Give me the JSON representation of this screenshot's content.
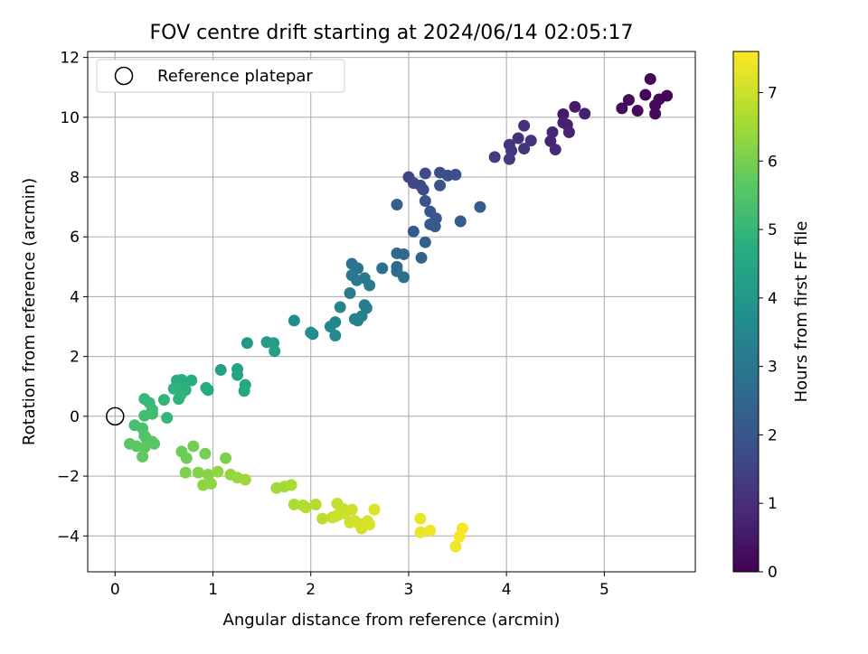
{
  "chart_data": {
    "type": "scatter",
    "title": "FOV centre drift starting at 2024/06/14 02:05:17",
    "xlabel": "Angular distance from reference (arcmin)",
    "ylabel": "Rotation from reference (arcmin)",
    "xlim": [
      -0.28,
      5.93
    ],
    "ylim": [
      -5.2,
      12.2
    ],
    "xticks": [
      0,
      1,
      2,
      3,
      4,
      5
    ],
    "yticks": [
      -4,
      -2,
      0,
      2,
      4,
      6,
      8,
      10,
      12
    ],
    "grid": true,
    "legend": {
      "position": "top-left",
      "entries": [
        "Reference platepar"
      ]
    },
    "reference_point": {
      "label": "Reference platepar",
      "x": 0,
      "y": 0
    },
    "colorbar": {
      "label": "Hours from first FF file",
      "min": 0,
      "max": 7.6,
      "ticks": [
        0,
        1,
        2,
        3,
        4,
        5,
        6,
        7
      ],
      "colormap": "viridis"
    },
    "points": [
      [
        5.47,
        11.28,
        0.05
      ],
      [
        5.42,
        10.75,
        0.1
      ],
      [
        5.56,
        10.6,
        0.12
      ],
      [
        5.64,
        10.72,
        0.08
      ],
      [
        5.52,
        10.4,
        0.15
      ],
      [
        5.34,
        10.22,
        0.2
      ],
      [
        5.52,
        10.12,
        0.18
      ],
      [
        5.18,
        10.3,
        0.25
      ],
      [
        5.25,
        10.58,
        0.22
      ],
      [
        4.58,
        10.1,
        0.55
      ],
      [
        4.7,
        10.35,
        0.6
      ],
      [
        4.62,
        9.75,
        0.65
      ],
      [
        4.58,
        9.82,
        0.7
      ],
      [
        4.8,
        10.12,
        0.72
      ],
      [
        4.64,
        9.5,
        0.75
      ],
      [
        4.45,
        9.2,
        0.8
      ],
      [
        4.47,
        9.5,
        0.85
      ],
      [
        4.5,
        8.92,
        0.9
      ],
      [
        4.18,
        9.72,
        1.0
      ],
      [
        4.12,
        9.3,
        1.05
      ],
      [
        4.25,
        9.22,
        1.1
      ],
      [
        4.18,
        8.95,
        1.15
      ],
      [
        4.03,
        9.08,
        1.2
      ],
      [
        4.05,
        8.88,
        1.25
      ],
      [
        4.03,
        8.6,
        1.3
      ],
      [
        3.88,
        8.67,
        1.35
      ],
      [
        3.0,
        8.0,
        1.6
      ],
      [
        3.05,
        7.8,
        1.65
      ],
      [
        3.12,
        7.72,
        1.7
      ],
      [
        3.15,
        7.58,
        1.72
      ],
      [
        3.17,
        8.12,
        1.75
      ],
      [
        3.32,
        8.15,
        1.8
      ],
      [
        3.4,
        8.05,
        1.82
      ],
      [
        3.48,
        8.08,
        1.85
      ],
      [
        3.32,
        7.72,
        1.9
      ],
      [
        3.17,
        7.2,
        1.95
      ],
      [
        3.22,
        6.85,
        2.0
      ],
      [
        3.28,
        6.62,
        2.05
      ],
      [
        3.22,
        6.42,
        2.1
      ],
      [
        3.27,
        6.35,
        2.12
      ],
      [
        3.05,
        6.18,
        2.15
      ],
      [
        3.53,
        6.52,
        2.2
      ],
      [
        3.73,
        7.0,
        2.25
      ],
      [
        2.88,
        7.08,
        2.3
      ],
      [
        3.17,
        5.82,
        2.35
      ],
      [
        3.13,
        5.3,
        2.4
      ],
      [
        2.88,
        5.45,
        2.55
      ],
      [
        2.95,
        5.42,
        2.6
      ],
      [
        2.88,
        5.0,
        2.65
      ],
      [
        2.88,
        4.85,
        2.7
      ],
      [
        2.95,
        4.65,
        2.75
      ],
      [
        2.73,
        4.95,
        2.8
      ],
      [
        2.42,
        5.1,
        2.85
      ],
      [
        2.48,
        4.95,
        2.9
      ],
      [
        2.42,
        4.72,
        2.95
      ],
      [
        2.47,
        4.55,
        3.0
      ],
      [
        2.55,
        4.62,
        3.02
      ],
      [
        2.6,
        4.38,
        3.05
      ],
      [
        2.4,
        4.12,
        3.1
      ],
      [
        2.55,
        3.72,
        3.15
      ],
      [
        2.57,
        3.62,
        3.2
      ],
      [
        2.52,
        3.35,
        3.25
      ],
      [
        2.45,
        3.25,
        3.3
      ],
      [
        2.48,
        3.2,
        3.35
      ],
      [
        2.3,
        3.65,
        3.4
      ],
      [
        2.2,
        3.0,
        3.45
      ],
      [
        2.25,
        3.15,
        3.5
      ],
      [
        2.25,
        2.7,
        3.55
      ],
      [
        2.02,
        2.75,
        3.6
      ],
      [
        2.0,
        2.8,
        3.65
      ],
      [
        1.83,
        3.2,
        3.7
      ],
      [
        1.35,
        2.45,
        4.1
      ],
      [
        1.55,
        2.48,
        4.15
      ],
      [
        1.62,
        2.45,
        4.2
      ],
      [
        1.63,
        2.18,
        4.25
      ],
      [
        1.08,
        1.55,
        4.3
      ],
      [
        1.25,
        1.58,
        4.35
      ],
      [
        1.25,
        1.38,
        4.4
      ],
      [
        1.33,
        1.05,
        4.45
      ],
      [
        1.32,
        0.85,
        4.5
      ],
      [
        0.93,
        0.95,
        4.6
      ],
      [
        0.95,
        0.88,
        4.65
      ],
      [
        0.78,
        1.2,
        4.7
      ],
      [
        0.68,
        1.22,
        4.72
      ],
      [
        0.63,
        1.2,
        4.75
      ],
      [
        0.7,
        0.95,
        4.8
      ],
      [
        0.72,
        0.88,
        4.82
      ],
      [
        0.6,
        0.92,
        4.85
      ],
      [
        0.67,
        0.72,
        4.88
      ],
      [
        0.65,
        0.58,
        4.9
      ],
      [
        0.5,
        0.55,
        4.95
      ],
      [
        0.53,
        -0.05,
        5.0
      ],
      [
        0.3,
        0.58,
        5.05
      ],
      [
        0.35,
        0.45,
        5.1
      ],
      [
        0.38,
        0.22,
        5.15
      ],
      [
        0.38,
        0.08,
        5.2
      ],
      [
        0.3,
        0.02,
        5.25
      ],
      [
        0.2,
        -0.3,
        5.3
      ],
      [
        0.28,
        -0.4,
        5.4
      ],
      [
        0.3,
        -0.65,
        5.45
      ],
      [
        0.32,
        -0.75,
        5.5
      ],
      [
        0.38,
        -0.85,
        5.55
      ],
      [
        0.4,
        -0.92,
        5.6
      ],
      [
        0.15,
        -0.92,
        5.62
      ],
      [
        0.22,
        -1.0,
        5.65
      ],
      [
        0.3,
        -1.05,
        5.68
      ],
      [
        0.28,
        -1.35,
        5.7
      ],
      [
        0.68,
        -1.18,
        5.85
      ],
      [
        0.73,
        -1.4,
        5.9
      ],
      [
        0.8,
        -1.0,
        5.95
      ],
      [
        0.92,
        -1.25,
        6.0
      ],
      [
        1.13,
        -1.4,
        6.05
      ],
      [
        0.72,
        -1.88,
        6.1
      ],
      [
        0.85,
        -1.88,
        6.15
      ],
      [
        0.95,
        -1.95,
        6.2
      ],
      [
        0.98,
        -2.25,
        6.25
      ],
      [
        0.9,
        -2.3,
        6.28
      ],
      [
        1.05,
        -1.85,
        6.3
      ],
      [
        1.18,
        -1.95,
        6.35
      ],
      [
        1.25,
        -2.05,
        6.4
      ],
      [
        1.33,
        -2.12,
        6.45
      ],
      [
        1.65,
        -2.4,
        6.5
      ],
      [
        1.73,
        -2.35,
        6.55
      ],
      [
        1.8,
        -2.3,
        6.6
      ],
      [
        1.83,
        -2.95,
        6.65
      ],
      [
        1.92,
        -2.98,
        6.7
      ],
      [
        1.95,
        -3.05,
        6.72
      ],
      [
        2.05,
        -2.95,
        6.75
      ],
      [
        2.12,
        -3.42,
        6.8
      ],
      [
        2.22,
        -3.38,
        6.85
      ],
      [
        2.27,
        -2.92,
        6.9
      ],
      [
        2.28,
        -3.3,
        6.92
      ],
      [
        2.33,
        -3.1,
        6.95
      ],
      [
        2.35,
        -3.25,
        6.98
      ],
      [
        2.25,
        -3.35,
        7.0
      ],
      [
        2.42,
        -3.12,
        7.02
      ],
      [
        2.45,
        -3.5,
        7.05
      ],
      [
        2.4,
        -3.55,
        7.08
      ],
      [
        2.5,
        -3.6,
        7.1
      ],
      [
        2.52,
        -3.75,
        7.12
      ],
      [
        2.58,
        -3.5,
        7.15
      ],
      [
        2.6,
        -3.62,
        7.18
      ],
      [
        2.65,
        -3.12,
        7.2
      ],
      [
        3.12,
        -3.42,
        7.35
      ],
      [
        3.12,
        -3.88,
        7.4
      ],
      [
        3.22,
        -3.82,
        7.42
      ],
      [
        3.48,
        -4.35,
        7.45
      ],
      [
        3.52,
        -4.02,
        7.5
      ],
      [
        3.55,
        -3.75,
        7.52
      ]
    ]
  }
}
